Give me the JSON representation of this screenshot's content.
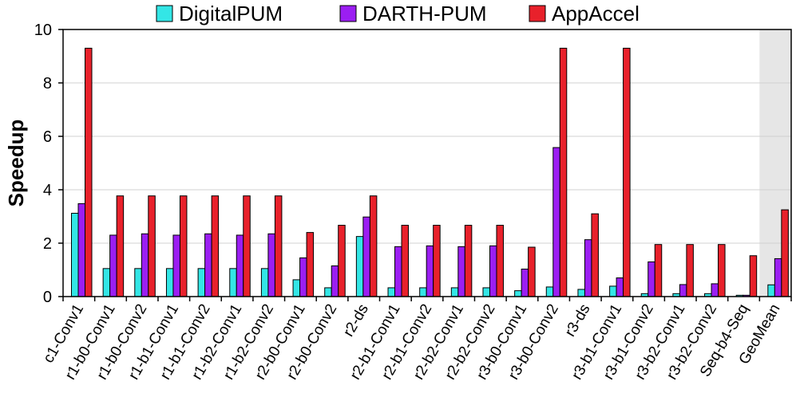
{
  "chart_data": {
    "type": "bar",
    "title": "",
    "xlabel": "",
    "ylabel": "Speedup",
    "ylim": [
      0,
      10
    ],
    "yticks": [
      0,
      2,
      4,
      6,
      8,
      10
    ],
    "grid": "horizontal",
    "legend_position": "top",
    "highlighted_category": "GeoMean",
    "categories": [
      "c1-Conv1",
      "r1-b0-Conv1",
      "r1-b0-Conv2",
      "r1-b1-Conv1",
      "r1-b1-Conv2",
      "r1-b2-Conv1",
      "r1-b2-Conv2",
      "r2-b0-Conv1",
      "r2-b0-Conv2",
      "r2-ds",
      "r2-b1-Conv1",
      "r2-b1-Conv2",
      "r2-b2-Conv1",
      "r2-b2-Conv2",
      "r3-b0-Conv1",
      "r3-b0-Conv2",
      "r3-ds",
      "r3-b1-Conv1",
      "r3-b1-Conv2",
      "r3-b2-Conv1",
      "r3-b2-Conv2",
      "Seq-b4-Seq",
      "GeoMean"
    ],
    "series": [
      {
        "name": "DigitalPUM",
        "color": "#33e6e6",
        "values": [
          3.12,
          1.05,
          1.05,
          1.05,
          1.05,
          1.05,
          1.05,
          0.63,
          0.33,
          2.25,
          0.33,
          0.33,
          0.33,
          0.33,
          0.22,
          0.36,
          0.27,
          0.39,
          0.11,
          0.11,
          0.11,
          0.05,
          0.44
        ]
      },
      {
        "name": "DARTH-PUM",
        "color": "#9b1ef2",
        "values": [
          3.48,
          2.3,
          2.35,
          2.3,
          2.35,
          2.3,
          2.35,
          1.45,
          1.15,
          2.98,
          1.87,
          1.9,
          1.87,
          1.9,
          1.03,
          5.58,
          2.13,
          0.7,
          1.3,
          0.45,
          0.48,
          0.05,
          1.42
        ]
      },
      {
        "name": "AppAccel",
        "color": "#e8212b",
        "values": [
          9.3,
          3.77,
          3.77,
          3.77,
          3.77,
          3.77,
          3.77,
          2.4,
          2.67,
          3.77,
          2.67,
          2.67,
          2.67,
          2.67,
          1.85,
          9.3,
          3.1,
          9.3,
          1.95,
          1.95,
          1.95,
          1.53,
          3.25
        ]
      }
    ]
  }
}
